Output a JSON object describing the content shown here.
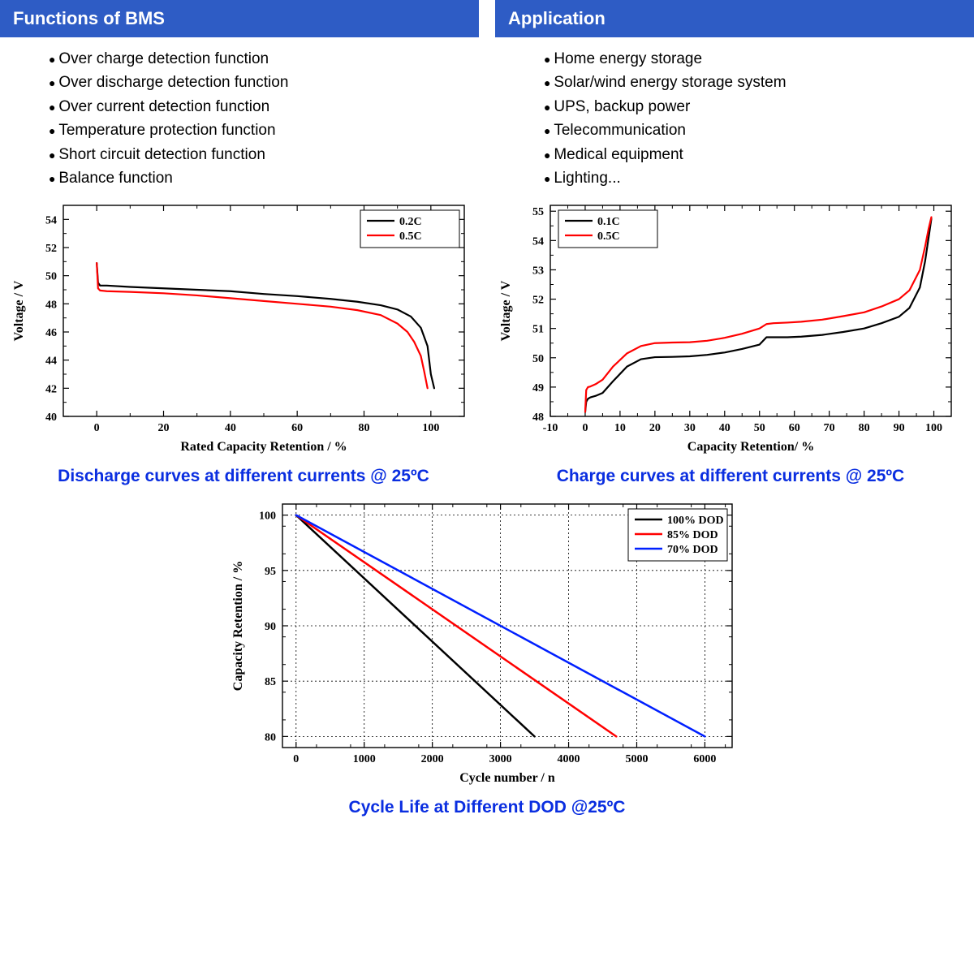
{
  "headers": {
    "left": "Functions of BMS",
    "right": "Application"
  },
  "lists": {
    "left": [
      "Over charge detection function",
      "Over discharge detection function",
      "Over current detection function",
      "Temperature protection function",
      "Short circuit detection function",
      "Balance function"
    ],
    "right": [
      "Home energy storage",
      "Solar/wind energy storage system",
      "UPS, backup power",
      "Telecommunication",
      "Medical equipment",
      "Lighting..."
    ]
  },
  "chart1": {
    "type": "line",
    "caption": "Discharge curves at different currents @ 25ºC",
    "xlabel": "Rated Capacity Retention / %",
    "ylabel": "Voltage / V",
    "xlim": [
      -10,
      110
    ],
    "xticks": [
      0,
      20,
      40,
      60,
      80,
      100
    ],
    "ylim": [
      40,
      55
    ],
    "yticks": [
      40,
      42,
      44,
      46,
      48,
      50,
      52,
      54
    ],
    "ytick_minor_interval": 1,
    "xtick_minor_interval": 10,
    "background_color": "#ffffff",
    "axis_color": "#000000",
    "line_width": 2.2,
    "legend_pos": "top-right",
    "legend_box": true,
    "series": [
      {
        "label": "0.2C",
        "color": "#000000",
        "points": [
          [
            0,
            50.9
          ],
          [
            0.4,
            49.5
          ],
          [
            1,
            49.3
          ],
          [
            3,
            49.3
          ],
          [
            10,
            49.2
          ],
          [
            20,
            49.1
          ],
          [
            30,
            49.0
          ],
          [
            40,
            48.9
          ],
          [
            50,
            48.7
          ],
          [
            60,
            48.55
          ],
          [
            70,
            48.35
          ],
          [
            78,
            48.15
          ],
          [
            85,
            47.9
          ],
          [
            90,
            47.6
          ],
          [
            94,
            47.1
          ],
          [
            97,
            46.3
          ],
          [
            99,
            45.0
          ],
          [
            100,
            43.0
          ],
          [
            101,
            42.0
          ]
        ]
      },
      {
        "label": "0.5C",
        "color": "#ff0000",
        "points": [
          [
            0,
            50.9
          ],
          [
            0.4,
            49.1
          ],
          [
            1,
            48.95
          ],
          [
            3,
            48.9
          ],
          [
            10,
            48.85
          ],
          [
            20,
            48.75
          ],
          [
            30,
            48.6
          ],
          [
            40,
            48.4
          ],
          [
            50,
            48.2
          ],
          [
            60,
            48.0
          ],
          [
            70,
            47.8
          ],
          [
            78,
            47.55
          ],
          [
            85,
            47.2
          ],
          [
            90,
            46.6
          ],
          [
            93,
            46.0
          ],
          [
            95,
            45.3
          ],
          [
            97,
            44.3
          ],
          [
            98,
            43.2
          ],
          [
            99,
            42.0
          ]
        ]
      }
    ]
  },
  "chart2": {
    "type": "line",
    "caption": "Charge curves at different currents @ 25ºC",
    "xlabel": "Capacity Retention/ %",
    "ylabel": "Voltage / V",
    "xlim": [
      -10,
      105
    ],
    "xticks": [
      -10,
      0,
      10,
      20,
      30,
      40,
      50,
      60,
      70,
      80,
      90,
      100
    ],
    "ylim": [
      48,
      55.2
    ],
    "yticks": [
      48,
      49,
      50,
      51,
      52,
      53,
      54,
      55
    ],
    "ytick_minor_interval": 0.5,
    "xtick_minor_interval": 5,
    "background_color": "#ffffff",
    "axis_color": "#000000",
    "line_width": 2.2,
    "legend_pos": "top-left",
    "legend_box": true,
    "series": [
      {
        "label": "0.1C",
        "color": "#000000",
        "points": [
          [
            0,
            48.15
          ],
          [
            0.3,
            48.5
          ],
          [
            0.8,
            48.6
          ],
          [
            1.5,
            48.65
          ],
          [
            3,
            48.7
          ],
          [
            5,
            48.8
          ],
          [
            8,
            49.2
          ],
          [
            12,
            49.7
          ],
          [
            16,
            49.95
          ],
          [
            20,
            50.02
          ],
          [
            25,
            50.03
          ],
          [
            30,
            50.05
          ],
          [
            35,
            50.1
          ],
          [
            40,
            50.18
          ],
          [
            45,
            50.3
          ],
          [
            50,
            50.45
          ],
          [
            52,
            50.7
          ],
          [
            54,
            50.7
          ],
          [
            58,
            50.7
          ],
          [
            62,
            50.72
          ],
          [
            68,
            50.78
          ],
          [
            74,
            50.88
          ],
          [
            80,
            51.0
          ],
          [
            85,
            51.18
          ],
          [
            90,
            51.4
          ],
          [
            93,
            51.7
          ],
          [
            96,
            52.4
          ],
          [
            97.5,
            53.3
          ],
          [
            98.5,
            54.1
          ],
          [
            99.3,
            54.75
          ]
        ]
      },
      {
        "label": "0.5C",
        "color": "#ff0000",
        "points": [
          [
            0,
            48.15
          ],
          [
            0.3,
            48.9
          ],
          [
            0.8,
            49.0
          ],
          [
            1.5,
            49.02
          ],
          [
            3,
            49.1
          ],
          [
            5,
            49.25
          ],
          [
            8,
            49.7
          ],
          [
            12,
            50.15
          ],
          [
            16,
            50.4
          ],
          [
            20,
            50.5
          ],
          [
            25,
            50.52
          ],
          [
            30,
            50.53
          ],
          [
            35,
            50.58
          ],
          [
            40,
            50.68
          ],
          [
            45,
            50.82
          ],
          [
            50,
            51.0
          ],
          [
            52,
            51.15
          ],
          [
            54,
            51.18
          ],
          [
            58,
            51.2
          ],
          [
            62,
            51.23
          ],
          [
            68,
            51.3
          ],
          [
            74,
            51.42
          ],
          [
            80,
            51.55
          ],
          [
            85,
            51.75
          ],
          [
            90,
            52.0
          ],
          [
            93,
            52.3
          ],
          [
            96,
            53.0
          ],
          [
            97.5,
            53.8
          ],
          [
            98.5,
            54.4
          ],
          [
            99.3,
            54.8
          ]
        ]
      }
    ]
  },
  "chart3": {
    "type": "line",
    "caption": "Cycle Life at Different DOD @25ºC",
    "xlabel": "Cycle number / n",
    "ylabel": "Capacity Retention / %",
    "xlim": [
      -200,
      6400
    ],
    "xticks": [
      0,
      1000,
      2000,
      3000,
      4000,
      5000,
      6000
    ],
    "ylim": [
      79,
      101
    ],
    "yticks": [
      80,
      85,
      90,
      95,
      100
    ],
    "ytick_minor_interval": 2.5,
    "xtick_minor_interval": 500,
    "background_color": "#ffffff",
    "axis_color": "#000000",
    "grid": true,
    "grid_color": "#000000",
    "grid_dash": "2,3",
    "line_width": 2.5,
    "legend_pos": "top-right",
    "legend_box": true,
    "series": [
      {
        "label": "100% DOD",
        "color": "#000000",
        "points": [
          [
            0,
            100
          ],
          [
            3500,
            80
          ]
        ]
      },
      {
        "label": "85% DOD",
        "color": "#ff0000",
        "points": [
          [
            0,
            100
          ],
          [
            4700,
            80
          ]
        ]
      },
      {
        "label": "70% DOD",
        "color": "#0020ff",
        "points": [
          [
            0,
            100
          ],
          [
            6000,
            80
          ]
        ]
      }
    ]
  },
  "colors": {
    "header_bg": "#2e5cc5",
    "caption": "#0a2ee0"
  }
}
